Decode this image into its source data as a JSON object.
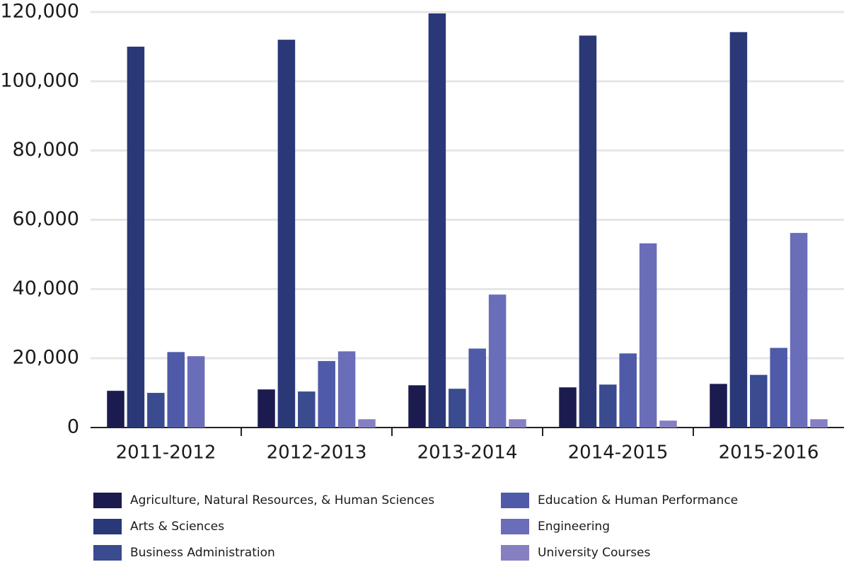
{
  "chart_data": {
    "type": "bar",
    "categories": [
      "2011-2012",
      "2012-2013",
      "2013-2014",
      "2014-2015",
      "2015-2016"
    ],
    "series": [
      {
        "name": "Agriculture, Natural Resources, & Human Sciences",
        "color": "#1b1b4f",
        "values": [
          10600,
          11000,
          12200,
          11600,
          12600
        ]
      },
      {
        "name": "Arts & Sciences",
        "color": "#2a3878",
        "values": [
          110000,
          112000,
          119600,
          113200,
          114200
        ]
      },
      {
        "name": "Business Administration",
        "color": "#3a4b8f",
        "values": [
          10000,
          10400,
          11200,
          12400,
          15200
        ]
      },
      {
        "name": "Education & Human Performance",
        "color": "#4f5ba8",
        "values": [
          21800,
          19200,
          22800,
          21400,
          23000
        ]
      },
      {
        "name": "Engineering",
        "color": "#6a6db8",
        "values": [
          20600,
          22000,
          38400,
          53200,
          56200
        ]
      },
      {
        "name": "University Courses",
        "color": "#8580c2",
        "values": [
          null,
          2400,
          2400,
          2000,
          2400
        ]
      }
    ],
    "ylim": [
      0,
      120000
    ],
    "yticks": [
      0,
      {
        "value": 20000,
        "label": "20,000"
      },
      {
        "value": 40000,
        "label": "40,000"
      },
      {
        "value": 60000,
        "label": "60,000"
      },
      {
        "value": 80000,
        "label": "80,000"
      },
      {
        "value": 100000,
        "label": "100,000"
      },
      {
        "value": 120000,
        "label": "120,000"
      }
    ],
    "grid": true,
    "legend": "bottom"
  }
}
